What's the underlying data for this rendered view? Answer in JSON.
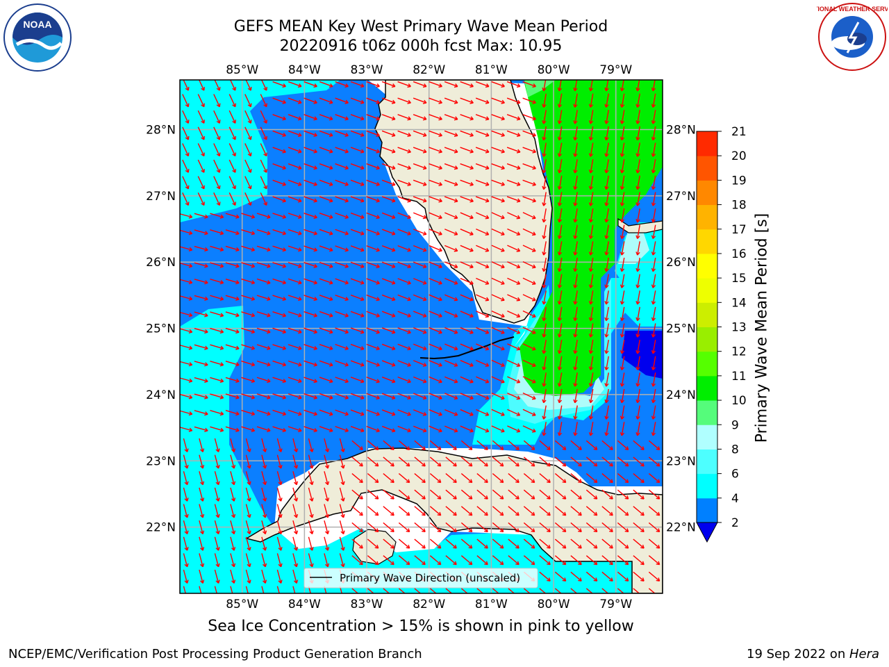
{
  "title": {
    "line1": "GEFS MEAN Key West Primary Wave Mean Period",
    "line2": "20220916 t06z 000h fcst   Max: 10.95"
  },
  "logos": {
    "left": {
      "name": "noaa-logo",
      "text": "NOAA"
    },
    "right": {
      "name": "nws-logo",
      "text": "NATIONAL WEATHER SERVICE"
    }
  },
  "map": {
    "lon_ticks": [
      "85°W",
      "84°W",
      "83°W",
      "82°W",
      "81°W",
      "80°W",
      "79°W"
    ],
    "lon_values": [
      -85,
      -84,
      -83,
      -82,
      -81,
      -80,
      -79
    ],
    "lat_ticks": [
      "28°N",
      "27°N",
      "26°N",
      "25°N",
      "24°N",
      "23°N",
      "22°N"
    ],
    "lat_values": [
      28,
      27,
      26,
      25,
      24,
      23,
      22
    ],
    "extent": {
      "lon_min": -86.0,
      "lon_max": -78.25,
      "lat_min": 21.0,
      "lat_max": 28.75
    },
    "legend_text": "Primary Wave Direction (unscaled)",
    "colors": {
      "land": "#efedd9",
      "band_2_4": "#0b7fff",
      "band_4_6": "#00ffff",
      "band_6_8": "#4dfcff",
      "band_8_9": "#aefcfa",
      "band_9_10": "#57fb77",
      "band_10_11": "#00ee00",
      "below_2": "#0000ee",
      "arrow": "#ff0000"
    }
  },
  "colorbar": {
    "label": "Primary Wave Mean Period [s]",
    "tick_labels": [
      "2",
      "4",
      "6",
      "8",
      "9",
      "10",
      "11",
      "12",
      "13",
      "14",
      "15",
      "16",
      "17",
      "18",
      "19",
      "20",
      "21"
    ],
    "colors": [
      "#0080ff",
      "#00ffff",
      "#4dffff",
      "#b0ffff",
      "#55fc7b",
      "#00ee00",
      "#55ff00",
      "#99ee00",
      "#ccee00",
      "#eeff00",
      "#ffff00",
      "#ffd700",
      "#ffb300",
      "#ff8800",
      "#ff5500",
      "#ff2a00"
    ],
    "below_color": "#0000ee"
  },
  "footer": {
    "note": "Sea Ice Concentration > 15% is shown in pink to yellow",
    "left": "NCEP/EMC/Verification Post Processing Product Generation Branch",
    "right_prefix": "19 Sep 2022 on ",
    "right_host": "Hera"
  }
}
